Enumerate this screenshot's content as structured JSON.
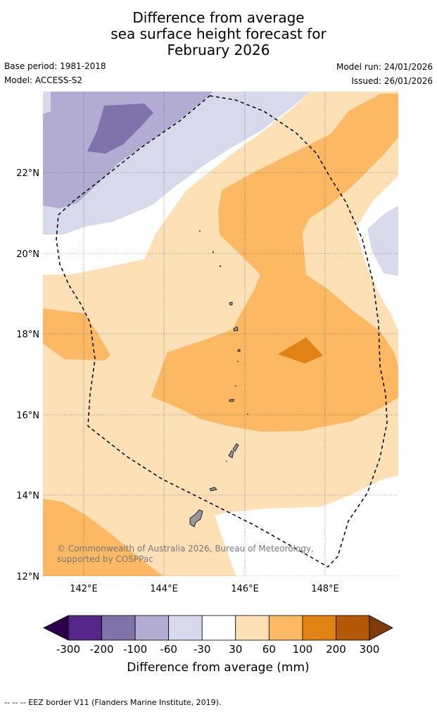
{
  "title": {
    "line1": "Difference from average",
    "line2": "sea surface height forecast for",
    "line3": "February 2026"
  },
  "meta": {
    "base_period": "Base period: 1981-2018",
    "model": "Model: ACCESS-S2",
    "model_run": "Model run: 24/01/2026",
    "issued": "Issued: 26/01/2026"
  },
  "map": {
    "lat_labels": [
      "22°N",
      "20°N",
      "18°N",
      "16°N",
      "14°N",
      "12°N"
    ],
    "lon_labels": [
      "142°E",
      "144°E",
      "146°E",
      "148°E"
    ],
    "region_lon_range": [
      141,
      149.8
    ],
    "region_lat_range": [
      12,
      24
    ],
    "copyright_text": "© Commonwealth of Australia 2026, Bureau of Meteorology, supported by COSPPac",
    "border_style": "dashed-black",
    "colors": {
      "gt300": "#7f3b08",
      "200_300": "#b35806",
      "100_200": "#e08214",
      "60_100": "#fdb863",
      "30_60": "#fee0b6",
      "neutral": "#ffffff",
      "m60_m30": "#d8daeb",
      "m100_m60": "#b2abd2",
      "m200_m100": "#8073ac",
      "m300_m200": "#542788",
      "lt_m300": "#2d004b",
      "land": "#999999"
    }
  },
  "colorbar": {
    "tick_labels": [
      "-300",
      "-200",
      "-100",
      "-60",
      "-30",
      "30",
      "60",
      "100",
      "200",
      "300"
    ],
    "label": "Difference from average (mm)",
    "colors": [
      "#2d004b",
      "#542788",
      "#8073ac",
      "#b2abd2",
      "#d8daeb",
      "#ffffff",
      "#fee0b6",
      "#fdb863",
      "#e08214",
      "#b35806",
      "#7f3b08"
    ]
  },
  "footnote": "--  --  -- EEZ border V11 (Flanders Marine Institute, 2019)."
}
